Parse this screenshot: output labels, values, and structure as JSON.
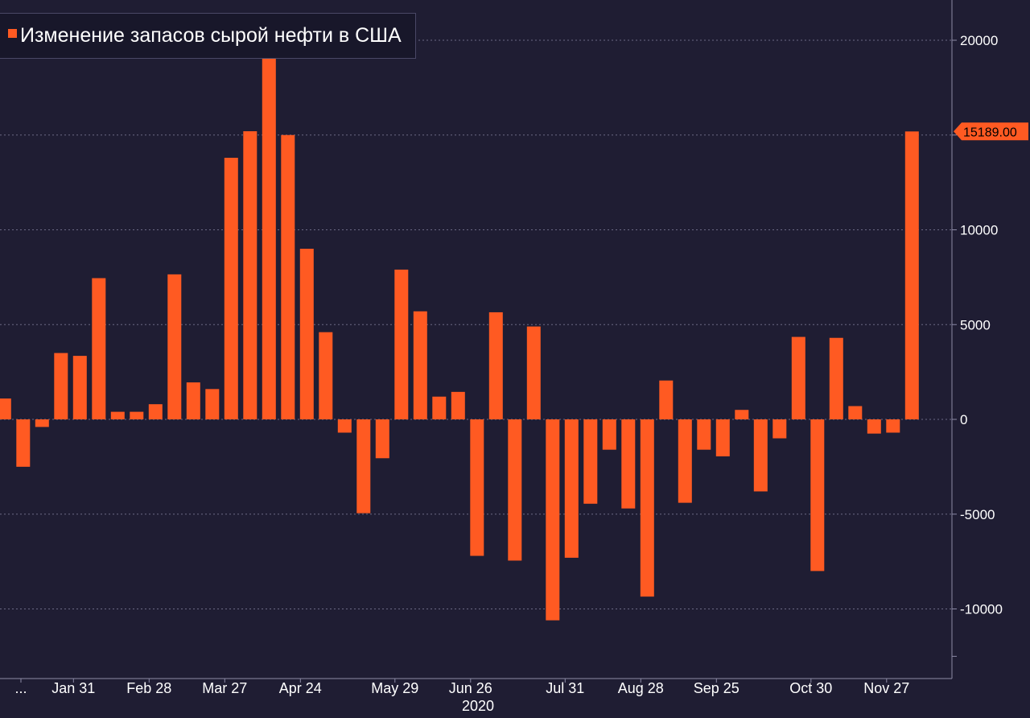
{
  "colors": {
    "background": "#1f1d33",
    "bar": "#ff5a22",
    "grid": "#6b6985",
    "axis": "#8c8aa6",
    "text": "#ffffff"
  },
  "chart_data": {
    "type": "bar",
    "legend": {
      "placement": "top-left",
      "label": "Изменение запасов сырой нефти в США"
    },
    "x_tick_labels": [
      "...",
      "Jan 31",
      "Feb 28",
      "Mar 27",
      "Apr 24",
      "May 29",
      "Jun 26",
      "Jul 31",
      "Aug 28",
      "Sep 25",
      "Oct 30",
      "Nov 27"
    ],
    "x_year_label": "2020",
    "y_ticks": [
      -10000,
      -5000,
      0,
      5000,
      10000,
      15000,
      20000
    ],
    "y_tick_labels": [
      "-10000",
      "-5000",
      "0",
      "5000",
      "10000",
      "",
      "20000"
    ],
    "ylim": [
      -12500,
      22000
    ],
    "grid": true,
    "y_axis_side": "right",
    "last_value_label": "15189.00",
    "series": [
      {
        "values": [
          1100,
          -2500,
          -400,
          3500,
          3350,
          7450,
          400,
          400,
          800,
          7650,
          1950,
          1600,
          13800,
          15200,
          19300,
          15000,
          9000,
          4600,
          -700,
          -4950,
          -2050,
          7900,
          5700,
          1200,
          1450,
          -7200,
          5650,
          -7450,
          4900,
          -10600,
          -7300,
          -4450,
          -1600,
          -4700,
          -9350,
          2050,
          -4400,
          -1600,
          -1950,
          500,
          -3800,
          -1000,
          4350,
          -8000,
          4300,
          700,
          -750,
          -700,
          15189
        ]
      }
    ]
  }
}
